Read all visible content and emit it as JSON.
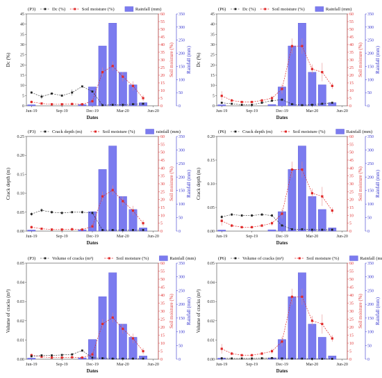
{
  "colors": {
    "bar": "#7b7bef",
    "bar_edge": "#5555d8",
    "red": "#e02a2a",
    "black": "#222222",
    "blue_axis": "#3232cc",
    "red_axis": "#e04040"
  },
  "chart_data": [
    {
      "type": "bar",
      "panel_label": "(P3)",
      "legend": [
        "Dc (%)",
        "Soil moisture (%)",
        "Rainfall (mm)"
      ],
      "xlabel": "Dates",
      "ylabel_left": "Dc (%)",
      "ylabel_right1": "Soil moisture (%)",
      "ylabel_right2": "Rainfall (mm)",
      "xticks": [
        "Jun-19",
        "Sep-19",
        "Dec-19",
        "Mar-20",
        "Jun-20"
      ],
      "ylim_left": [
        0,
        45
      ],
      "yticks_left": [
        "0",
        "5",
        "10",
        "15",
        "20",
        "25",
        "30",
        "35",
        "40",
        "45"
      ],
      "ylim_right1": [
        0,
        60
      ],
      "yticks_right1": [
        "0",
        "5",
        "10",
        "15",
        "20",
        "25",
        "30",
        "35",
        "40",
        "45",
        "50",
        "55",
        "60"
      ],
      "ylim_right2": [
        0,
        350
      ],
      "yticks_right2": [
        "0",
        "50",
        "100",
        "150",
        "200",
        "250",
        "300",
        "350"
      ],
      "months": [
        0,
        1,
        2,
        3,
        4,
        5,
        6,
        7,
        8,
        9,
        10,
        11,
        12
      ],
      "rainfall": [
        4,
        0,
        0,
        0,
        0,
        5,
        72,
        228,
        315,
        128,
        80,
        12,
        0
      ],
      "primary": [
        6.5,
        4.5,
        6,
        5,
        6.5,
        9.5,
        7,
        0.3,
        0.5,
        0.5,
        0.8,
        1,
        null
      ],
      "primary_err": [
        0.6,
        1.2,
        0.5,
        0.6,
        1.5,
        0.5,
        0.5,
        0.2,
        0.2,
        0.2,
        0.2,
        0.3,
        null
      ],
      "soil_moisture": [
        2.5,
        1.5,
        1,
        1,
        1.2,
        1,
        3,
        22,
        26,
        19,
        13,
        5,
        null
      ],
      "soil_moisture_err": [
        1,
        0.5,
        0.5,
        0.5,
        0.5,
        0.5,
        1.5,
        3,
        3,
        3,
        3,
        2,
        null
      ]
    },
    {
      "type": "bar",
      "panel_label": "(P6)",
      "legend": [
        "Dc (%)",
        "Soil moisture (%)",
        "Rainfall (mm)"
      ],
      "xlabel": "Dates",
      "ylabel_left": "Dc (%)",
      "ylabel_right1": "Soil moisture (%)",
      "ylabel_right2": "Rainfall (mm)",
      "xticks": [
        "Jun-19",
        "Sep-19",
        "Dec-19",
        "Mar-20",
        "Jun-20"
      ],
      "ylim_left": [
        0,
        45
      ],
      "yticks_left": [
        "0",
        "5",
        "10",
        "15",
        "20",
        "25",
        "30",
        "35",
        "40",
        "45"
      ],
      "ylim_right1": [
        0,
        60
      ],
      "yticks_right1": [
        "0",
        "5",
        "10",
        "15",
        "20",
        "25",
        "30",
        "35",
        "40",
        "45",
        "50",
        "55",
        "60"
      ],
      "ylim_right2": [
        0,
        350
      ],
      "yticks_right2": [
        "0",
        "50",
        "100",
        "150",
        "200",
        "250",
        "300",
        "350"
      ],
      "months": [
        0,
        1,
        2,
        3,
        4,
        5,
        6,
        7,
        8,
        9,
        10,
        11,
        12
      ],
      "rainfall": [
        4,
        0,
        0,
        0,
        0,
        5,
        72,
        228,
        315,
        128,
        80,
        12,
        0
      ],
      "primary": [
        1.5,
        1,
        0.5,
        0.5,
        1.5,
        2.5,
        3,
        0.8,
        0.3,
        0.5,
        1,
        1.5,
        null
      ],
      "primary_err": [
        0.4,
        0.4,
        0.2,
        0.2,
        0.5,
        0.5,
        0.8,
        0.3,
        0.2,
        0.2,
        0.3,
        0.4,
        null
      ],
      "soil_moisture": [
        6.5,
        3.5,
        2.5,
        2.5,
        3.5,
        5,
        11,
        39,
        39,
        24,
        22,
        13,
        null
      ],
      "soil_moisture_err": [
        3,
        1,
        0.5,
        0.5,
        1,
        1.5,
        3,
        5,
        5,
        3,
        6,
        2,
        null
      ]
    },
    {
      "type": "bar",
      "panel_label": "(P3)",
      "legend": [
        "Crack depth (m)",
        "Soil moisture (%)",
        "rainfall (mm)"
      ],
      "xlabel": "Dates",
      "ylabel_left": "Crack depth (m)",
      "ylabel_right1": "Soil moisture (%)",
      "ylabel_right2": "Rainfall (mm)",
      "xticks": [
        "Jun-19",
        "Sep-19",
        "Dec-19",
        "Mar-20",
        "Jun-20"
      ],
      "ylim_left": [
        0,
        0.25
      ],
      "yticks_left": [
        "0.00",
        "0.05",
        "0.10",
        "0.15",
        "0.20",
        "0.25"
      ],
      "ylim_right1": [
        0,
        60
      ],
      "yticks_right1": [
        "0",
        "5",
        "10",
        "15",
        "20",
        "25",
        "30",
        "35",
        "40",
        "45",
        "50",
        "55",
        "60"
      ],
      "ylim_right2": [
        0,
        350
      ],
      "yticks_right2": [
        "0",
        "50",
        "100",
        "150",
        "200",
        "250",
        "300",
        "350"
      ],
      "months": [
        0,
        1,
        2,
        3,
        4,
        5,
        6,
        7,
        8,
        9,
        10,
        11,
        12
      ],
      "rainfall": [
        4,
        0,
        0,
        0,
        0,
        5,
        72,
        228,
        315,
        128,
        80,
        12,
        0
      ],
      "primary": [
        0.045,
        0.055,
        0.05,
        0.048,
        0.05,
        0.05,
        0.048,
        0.003,
        0.003,
        0.003,
        0.003,
        0.003,
        null
      ],
      "primary_err": [
        0.005,
        0.005,
        0.004,
        0.004,
        0.003,
        0.004,
        0.004,
        0.002,
        0.002,
        0.002,
        0.002,
        0.002,
        null
      ],
      "soil_moisture": [
        2.5,
        1.5,
        1,
        1,
        1.2,
        1,
        3,
        22,
        26,
        19,
        13,
        5,
        null
      ],
      "soil_moisture_err": [
        1,
        0.5,
        0.5,
        0.5,
        0.5,
        0.5,
        1.5,
        3,
        3,
        3,
        3,
        2,
        null
      ]
    },
    {
      "type": "bar",
      "panel_label": "(P6)",
      "legend": [
        "Crack depth (m)",
        "Soil moisture (%)",
        "Rainfall (mm)"
      ],
      "xlabel": "Dates",
      "ylabel_left": "Crack depth (m)",
      "ylabel_right1": "Soil moisture (%)",
      "ylabel_right2": "Rainfall (mm)",
      "xticks": [
        "Jun-19",
        "Sep-19",
        "Dec-19",
        "Mar-20",
        "Jun-20"
      ],
      "ylim_left": [
        0,
        0.2
      ],
      "yticks_left": [
        "0.00",
        "0.05",
        "0.10",
        "0.15",
        "0.20"
      ],
      "ylim_right1": [
        0,
        60
      ],
      "yticks_right1": [
        "0",
        "5",
        "10",
        "15",
        "20",
        "25",
        "30",
        "35",
        "40",
        "45",
        "50",
        "55",
        "60"
      ],
      "ylim_right2": [
        0,
        350
      ],
      "yticks_right2": [
        "0",
        "50",
        "100",
        "150",
        "200",
        "250",
        "300",
        "350"
      ],
      "months": [
        0,
        1,
        2,
        3,
        4,
        5,
        6,
        7,
        8,
        9,
        10,
        11,
        12
      ],
      "rainfall": [
        4,
        0,
        0,
        0,
        0,
        5,
        72,
        228,
        315,
        128,
        80,
        12,
        0
      ],
      "primary": [
        0.03,
        0.035,
        0.033,
        0.033,
        0.035,
        0.033,
        0.012,
        0.004,
        0.004,
        0.003,
        0.003,
        0.003,
        null
      ],
      "primary_err": [
        0.004,
        0.003,
        0.003,
        0.003,
        0.003,
        0.003,
        0.003,
        0.002,
        0.002,
        0.002,
        0.002,
        0.002,
        null
      ],
      "soil_moisture": [
        6.5,
        3.5,
        2.5,
        2.5,
        3.5,
        5,
        11,
        39,
        39,
        24,
        22,
        13,
        null
      ],
      "soil_moisture_err": [
        3,
        1,
        0.5,
        0.5,
        1,
        1.5,
        3,
        5,
        5,
        3,
        6,
        2,
        null
      ]
    },
    {
      "type": "bar",
      "panel_label": "(P3)",
      "legend": [
        "Volume of cracks (m³)",
        "Soil moisture (%)",
        "Rainfall (mm)"
      ],
      "xlabel": "Dates",
      "ylabel_left": "Volume of cracks (m³)",
      "ylabel_right1": "Soil moisture (%)",
      "ylabel_right2": "Rainfall (mm)",
      "xticks": [
        "Jun-19",
        "Sep-19",
        "Dec-19",
        "Mar-20",
        "Jun-20"
      ],
      "ylim_left": [
        0,
        0.05
      ],
      "yticks_left": [
        "0.00",
        "0.01",
        "0.02",
        "0.03",
        "0.04",
        "0.05"
      ],
      "ylim_right1": [
        0,
        60
      ],
      "yticks_right1": [
        "0",
        "5",
        "10",
        "15",
        "20",
        "25",
        "30",
        "35",
        "40",
        "45",
        "50",
        "55",
        "60"
      ],
      "ylim_right2": [
        0,
        350
      ],
      "yticks_right2": [
        "0",
        "50",
        "100",
        "150",
        "200",
        "250",
        "300",
        "350"
      ],
      "months": [
        0,
        1,
        2,
        3,
        4,
        5,
        6,
        7,
        8,
        9,
        10,
        11,
        12
      ],
      "rainfall": [
        4,
        0,
        0,
        0,
        0,
        5,
        72,
        228,
        315,
        128,
        80,
        12,
        0
      ],
      "primary": [
        0.0015,
        0.002,
        0.002,
        0.0022,
        0.0025,
        0.0045,
        0.0008,
        0.0005,
        0.0003,
        0.0003,
        0.0003,
        0.0003,
        null
      ],
      "primary_err": [
        0.0005,
        0.0004,
        0.0004,
        0.0004,
        0.0004,
        0.0005,
        0.0003,
        0.0002,
        0.0001,
        0.0001,
        0.0001,
        0.0001,
        null
      ],
      "soil_moisture": [
        2.5,
        1.5,
        1,
        1,
        1.2,
        1,
        3,
        22,
        26,
        19,
        13,
        5,
        null
      ],
      "soil_moisture_err": [
        1,
        0.5,
        0.5,
        0.5,
        0.5,
        0.5,
        1.5,
        3,
        3,
        3,
        3,
        2,
        null
      ]
    },
    {
      "type": "bar",
      "panel_label": "(P6)",
      "legend": [
        "Volume of cracks (m³)",
        "Soil moisture (%)",
        "Rainfall (mm)"
      ],
      "xlabel": "Dates",
      "ylabel_left": "Volume of cracks (m³)",
      "ylabel_right1": "Soil moisture (%)",
      "ylabel_right2": "Rainfall (mm)",
      "xticks": [
        "Jun-19",
        "Sep-19",
        "Dec-19",
        "Mar-20",
        "Jun-20"
      ],
      "ylim_left": [
        0,
        0.05
      ],
      "yticks_left": [
        "0.00",
        "0.01",
        "0.02",
        "0.03",
        "0.04",
        "0.05"
      ],
      "ylim_right1": [
        0,
        60
      ],
      "yticks_right1": [
        "0",
        "5",
        "10",
        "15",
        "20",
        "25",
        "30",
        "35",
        "40",
        "45",
        "50",
        "55",
        "60"
      ],
      "ylim_right2": [
        0,
        350
      ],
      "yticks_right2": [
        "0",
        "50",
        "100",
        "150",
        "200",
        "250",
        "300",
        "350"
      ],
      "months": [
        0,
        1,
        2,
        3,
        4,
        5,
        6,
        7,
        8,
        9,
        10,
        11,
        12
      ],
      "rainfall": [
        4,
        0,
        0,
        0,
        0,
        5,
        72,
        228,
        315,
        128,
        80,
        12,
        0
      ],
      "primary": [
        0.0005,
        0.0004,
        0.0004,
        0.0004,
        0.0005,
        0.0006,
        0.0004,
        0.0003,
        0.0003,
        0.0002,
        0.0002,
        0.0002,
        null
      ],
      "primary_err": [
        0.0002,
        0.0002,
        0.0002,
        0.0002,
        0.0002,
        0.0002,
        0.0002,
        0.0001,
        0.0001,
        0.0001,
        0.0001,
        0.0001,
        null
      ],
      "soil_moisture": [
        6.5,
        3.5,
        2.5,
        2.5,
        3.5,
        5,
        11,
        39,
        39,
        24,
        22,
        13,
        null
      ],
      "soil_moisture_err": [
        3,
        1,
        0.5,
        0.5,
        1,
        1.5,
        3,
        5,
        5,
        3,
        6,
        2,
        null
      ]
    }
  ]
}
